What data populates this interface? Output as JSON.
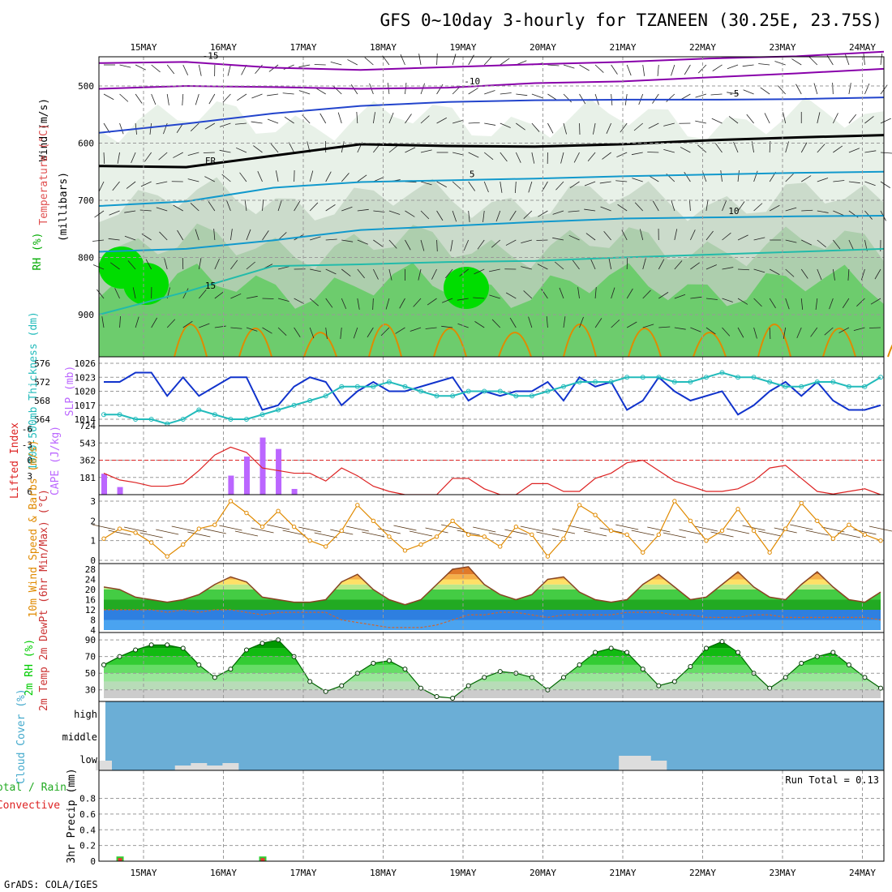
{
  "title": "GFS 0~10day 3-hourly for TZANEEN (30.25E, 23.75S)",
  "footer": "GrADS: COLA/IGES",
  "colors": {
    "rh_dark": "#00dd00",
    "rh_mid": "#66cc66",
    "rh_light": "#aaccaa",
    "temp_purple": "#8800aa",
    "temp_blue": "#2244cc",
    "temp_cyan": "#1199cc",
    "temp_teal": "#22bbaa",
    "temp_green": "#22aa66",
    "temp_orange": "#e08a00",
    "slp": "#1133cc",
    "thickness": "#22bbbb",
    "lifted_index": "#dd2222",
    "cape": "#bb66ff",
    "wind": "#e08a00",
    "rh2m": "#00cc00",
    "cloud": "#6baed6",
    "cloud_low": "#dddddd",
    "precip_total": "#33cc33",
    "precip_conv": "#ee3333"
  },
  "chart_data": [
    {
      "type": "heatmap",
      "panel": "upper-air",
      "x": [
        "15MAY",
        "16MAY",
        "17MAY",
        "18MAY",
        "19MAY",
        "20MAY",
        "21MAY",
        "22MAY",
        "23MAY",
        "24MAY"
      ],
      "yticks": [
        "500",
        "600",
        "700",
        "800",
        "900"
      ],
      "ylabel": "(millibars)",
      "side_labels": [
        "Wind (m/s)",
        "Temperature (°C)",
        "RH (%)"
      ],
      "isotherms": [
        {
          "label": "-15",
          "pressure": [
            460,
            458,
            468,
            472,
            467,
            462,
            458,
            452,
            448,
            440
          ]
        },
        {
          "label": "-10",
          "pressure": [
            505,
            500,
            502,
            505,
            503,
            495,
            492,
            485,
            478,
            470
          ]
        },
        {
          "label": "-5",
          "pressure": [
            582,
            566,
            548,
            535,
            528,
            525,
            524,
            524,
            523,
            520
          ]
        },
        {
          "label": "FR",
          "pressure": [
            640,
            642,
            622,
            602,
            605,
            606,
            602,
            595,
            590,
            586
          ]
        },
        {
          "label": "5",
          "pressure": [
            710,
            702,
            678,
            668,
            665,
            662,
            658,
            655,
            652,
            650
          ]
        },
        {
          "label": "10",
          "pressure": [
            790,
            785,
            770,
            752,
            745,
            738,
            732,
            730,
            728,
            727
          ]
        },
        {
          "label": "15",
          "pressure": [
            900,
            860,
            815,
            812,
            808,
            806,
            800,
            795,
            790,
            785
          ]
        }
      ]
    },
    {
      "type": "line",
      "panel": "slp-thickness",
      "xlabel": "",
      "series": [
        {
          "name": "SLP (mb)",
          "ticks": [
            "1014",
            "1017",
            "1020",
            "1023",
            "1026"
          ],
          "values": [
            1022,
            1022,
            1024,
            1024,
            1019,
            1023,
            1019,
            1021,
            1023,
            1023,
            1016,
            1017,
            1021,
            1023,
            1022,
            1017,
            1020,
            1022,
            1020,
            1020,
            1021,
            1022,
            1023,
            1018,
            1020,
            1019,
            1020,
            1020,
            1022,
            1018,
            1023,
            1021,
            1022,
            1016,
            1018,
            1023,
            1020,
            1018,
            1019,
            1020,
            1015,
            1017,
            1020,
            1022,
            1019,
            1022,
            1018,
            1016,
            1016,
            1017
          ]
        },
        {
          "name": "1000-500mb Thickness (dm)",
          "ticks": [
            "564",
            "568",
            "572",
            "576"
          ],
          "values": [
            565,
            565,
            564,
            564,
            563,
            564,
            566,
            565,
            564,
            564,
            565,
            566,
            567,
            568,
            569,
            571,
            571,
            571,
            572,
            571,
            570,
            569,
            569,
            570,
            570,
            570,
            569,
            569,
            570,
            571,
            572,
            572,
            572,
            573,
            573,
            573,
            572,
            572,
            573,
            574,
            573,
            573,
            572,
            571,
            571,
            572,
            572,
            571,
            571,
            573
          ]
        }
      ]
    },
    {
      "type": "bar",
      "panel": "cape-lifted-index",
      "series": [
        {
          "name": "Lifted Index",
          "ticks": [
            "-6",
            "-3",
            "0",
            "3",
            "6"
          ],
          "values": [
            2.5,
            3.8,
            4.3,
            5,
            5,
            4.5,
            2,
            -1,
            -2.5,
            -1.5,
            1.5,
            2,
            2.5,
            2.5,
            4,
            1.5,
            3,
            5,
            6,
            7,
            7,
            7,
            3.5,
            3.5,
            5.5,
            7,
            7,
            4.5,
            4.5,
            6,
            6,
            3.5,
            2.5,
            0.5,
            0,
            2,
            4,
            5,
            6,
            6,
            5.5,
            4,
            1.5,
            1,
            3.5,
            6,
            6.5,
            6,
            5.5,
            7
          ]
        },
        {
          "name": "CAPE (J/kg)",
          "ticks": [
            "181",
            "362",
            "543",
            "724"
          ],
          "values": [
            220,
            80,
            0,
            0,
            0,
            0,
            0,
            0,
            200,
            400,
            600,
            480,
            60,
            0,
            0,
            0,
            0,
            0,
            0,
            0,
            0,
            0,
            0,
            0,
            0,
            0,
            0,
            0,
            0,
            0,
            0,
            0,
            0,
            0,
            0,
            0,
            0,
            0,
            0,
            0,
            0,
            0,
            0,
            0,
            0,
            0,
            0,
            0,
            0,
            0
          ]
        }
      ]
    },
    {
      "type": "line",
      "panel": "wind10m",
      "ylabel": "10m Wind Speed & Barbs (m/s)",
      "ticks": [
        "0",
        "1",
        "2",
        "3"
      ],
      "values": [
        1.1,
        1.6,
        1.4,
        0.9,
        0.2,
        0.8,
        1.6,
        1.8,
        3.0,
        2.4,
        1.7,
        2.5,
        1.7,
        1.0,
        0.7,
        1.5,
        2.8,
        2.0,
        1.2,
        0.5,
        0.8,
        1.2,
        2.0,
        1.3,
        1.2,
        0.7,
        1.7,
        1.3,
        0.2,
        1.1,
        2.8,
        2.3,
        1.5,
        1.3,
        0.4,
        1.3,
        3.0,
        2.0,
        1.0,
        1.5,
        2.6,
        1.5,
        0.4,
        1.6,
        2.9,
        2.0,
        1.1,
        1.8,
        1.3,
        1.0
      ]
    },
    {
      "type": "area",
      "panel": "temp2m",
      "ylabel": "2m Temp 2m DewPt (6hr Min/Max) (°C)",
      "ticks": [
        "4",
        "8",
        "12",
        "16",
        "20",
        "24",
        "28"
      ],
      "temp": [
        21,
        20,
        17,
        16,
        15,
        16,
        18,
        22,
        25,
        23,
        17,
        16,
        15,
        15,
        16,
        23,
        26,
        20,
        16,
        14,
        16,
        22,
        28,
        29,
        22,
        18,
        16,
        18,
        24,
        25,
        19,
        16,
        15,
        16,
        22,
        26,
        21,
        16,
        17,
        22,
        27,
        21,
        17,
        16,
        22,
        27,
        21,
        16,
        15,
        19
      ],
      "dewpt": [
        12,
        12,
        12,
        12,
        11,
        12,
        11,
        12,
        12,
        11,
        10,
        11,
        11,
        11,
        11,
        8,
        7,
        6,
        5,
        5,
        5,
        6,
        8,
        10,
        10,
        11,
        11,
        10,
        9,
        10,
        10,
        10,
        10,
        11,
        11,
        11,
        10,
        10,
        9,
        9,
        9,
        10,
        10,
        9,
        9,
        9,
        9,
        9,
        9,
        8
      ]
    },
    {
      "type": "area",
      "panel": "rh2m",
      "ylabel": "2m RH (%)",
      "ticks": [
        "30",
        "50",
        "70",
        "90"
      ],
      "values": [
        60,
        70,
        78,
        84,
        84,
        80,
        60,
        45,
        55,
        78,
        86,
        90,
        70,
        40,
        28,
        35,
        50,
        62,
        65,
        55,
        32,
        22,
        20,
        35,
        45,
        52,
        50,
        45,
        30,
        45,
        60,
        75,
        80,
        75,
        55,
        35,
        40,
        58,
        80,
        88,
        75,
        50,
        32,
        45,
        62,
        70,
        75,
        60,
        45,
        32
      ]
    },
    {
      "type": "bar",
      "panel": "cloud-cover",
      "ylabel": "Cloud Cover (%)",
      "levels": [
        "high",
        "middle",
        "low"
      ],
      "low_cloud_pct": [
        20,
        0,
        0,
        0,
        0,
        10,
        15,
        10,
        15,
        0,
        0,
        0,
        0,
        0,
        0,
        0,
        0,
        0,
        0,
        0,
        0,
        0,
        0,
        0,
        0,
        0,
        0,
        0,
        0,
        0,
        0,
        0,
        0,
        30,
        30,
        20,
        0,
        0,
        0,
        0,
        0,
        0,
        0,
        0,
        0,
        0,
        0,
        0,
        0,
        0
      ]
    },
    {
      "type": "bar",
      "panel": "precip",
      "ylabel": "3hr Precip (mm)",
      "side_labels": [
        "Total / Rain",
        "Convective"
      ],
      "annotation": "Run Total = 0.13",
      "ticks": [
        "0",
        "0.2",
        "0.4",
        "0.6",
        "0.8"
      ],
      "values": [
        0,
        0.06,
        0,
        0,
        0,
        0,
        0,
        0,
        0,
        0,
        0.06,
        0,
        0,
        0,
        0,
        0,
        0,
        0,
        0,
        0,
        0,
        0,
        0,
        0,
        0,
        0,
        0,
        0,
        0,
        0,
        0,
        0,
        0,
        0,
        0,
        0,
        0,
        0,
        0,
        0,
        0,
        0,
        0,
        0,
        0,
        0,
        0,
        0,
        0,
        0
      ]
    }
  ]
}
